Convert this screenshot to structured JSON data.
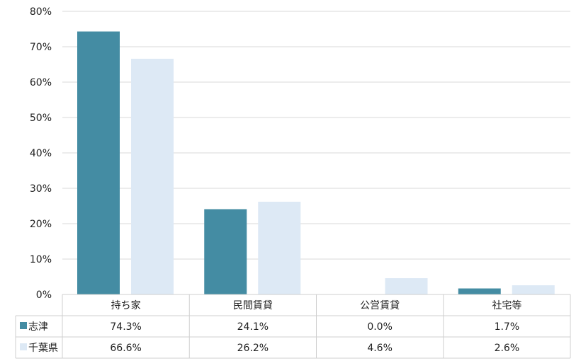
{
  "chart_data": {
    "type": "bar",
    "categories": [
      "持ち家",
      "民間賃貸",
      "公営賃貸",
      "社宅等"
    ],
    "series": [
      {
        "name": "志津",
        "values": [
          74.3,
          24.1,
          0.0,
          1.7
        ],
        "labels": [
          "74.3%",
          "24.1%",
          "0.0%",
          "1.7%"
        ],
        "color": "#448ca3"
      },
      {
        "name": "千葉県",
        "values": [
          66.6,
          26.2,
          4.6,
          2.6
        ],
        "labels": [
          "66.6%",
          "26.2%",
          "4.6%",
          "2.6%"
        ],
        "color": "#dde9f5"
      }
    ],
    "ylim": [
      0,
      80
    ],
    "yticks": [
      "0%",
      "10%",
      "20%",
      "30%",
      "40%",
      "50%",
      "60%",
      "70%",
      "80%"
    ],
    "grid": true,
    "legend": "data-table-left"
  }
}
